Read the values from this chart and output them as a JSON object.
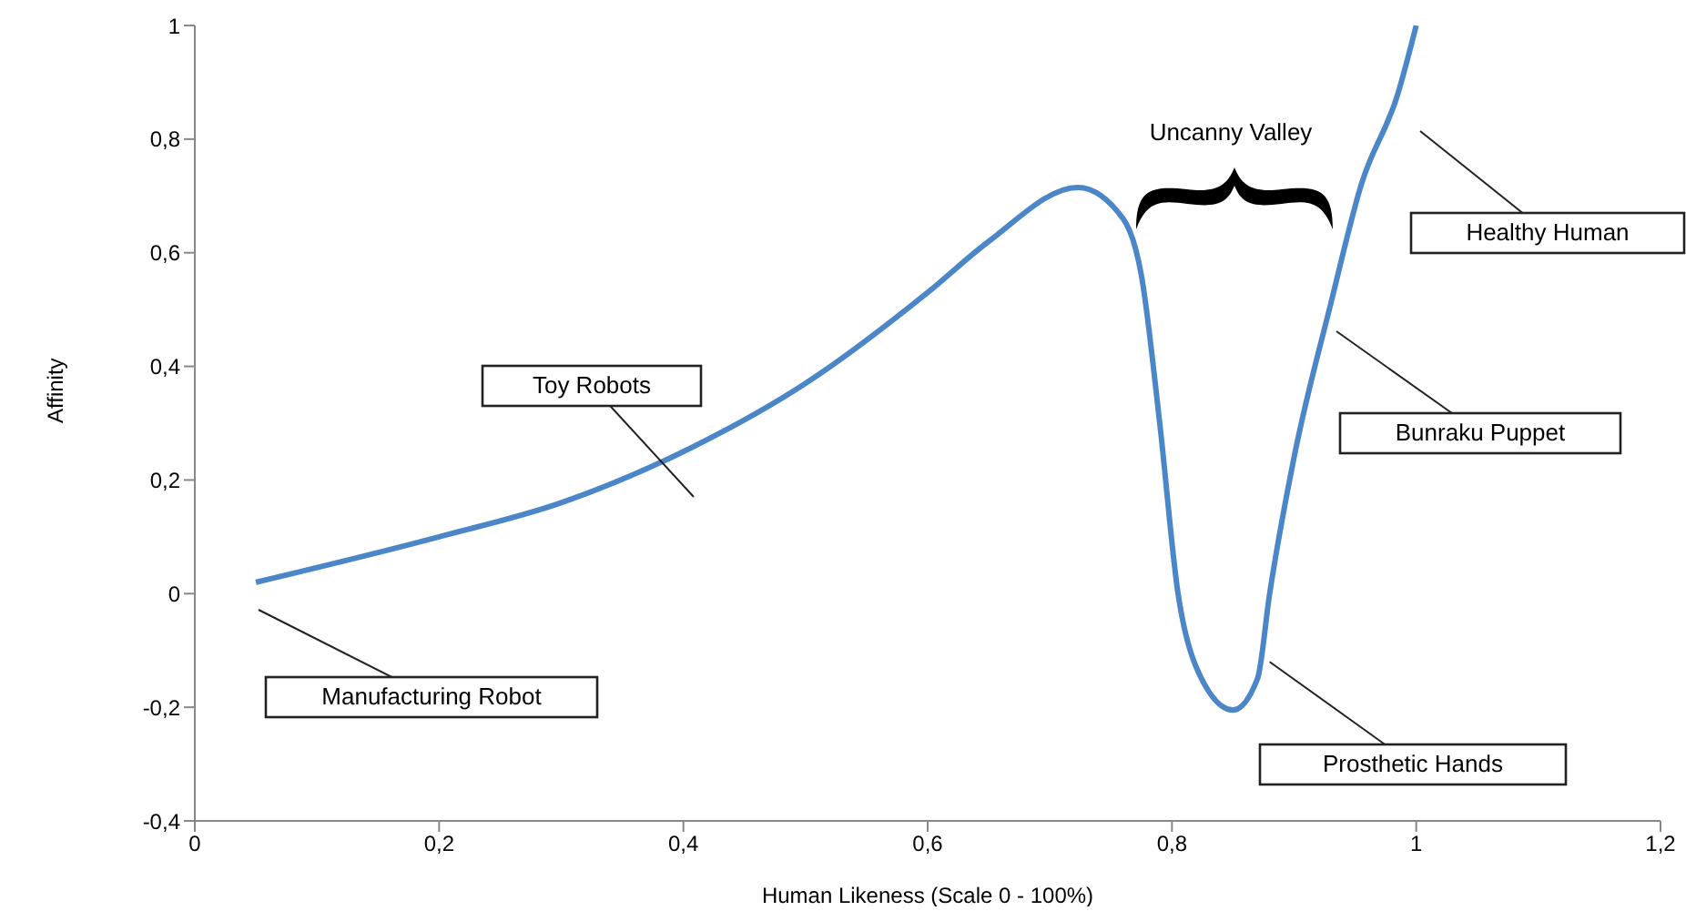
{
  "chart_data": {
    "type": "line",
    "xlabel": "Human Likeness (Scale 0 - 100%)",
    "ylabel": "Affinity",
    "x": [
      0.05,
      0.2,
      0.3,
      0.4,
      0.5,
      0.6,
      0.65,
      0.723,
      0.76,
      0.775,
      0.79,
      0.805,
      0.82,
      0.85,
      0.87,
      0.88,
      0.9,
      0.93,
      0.955,
      0.985,
      1.0
    ],
    "series": [
      {
        "color": "#4a86c8",
        "values": [
          0.02,
          0.1,
          0.16,
          0.25,
          0.37,
          0.53,
          0.62,
          0.715,
          0.66,
          0.56,
          0.3,
          0,
          -0.13,
          -0.205,
          -0.15,
          0,
          0.24,
          0.51,
          0.72,
          0.88,
          1.0
        ]
      }
    ],
    "xlim": [
      0,
      1.2
    ],
    "xticks": [
      0,
      {
        "value": 0.2,
        "label": "0,2"
      },
      {
        "value": 0.4,
        "label": "0,4"
      },
      {
        "value": 0.6,
        "label": "0,6"
      },
      {
        "value": 0.8,
        "label": "0,8"
      },
      1,
      {
        "value": 1.2,
        "label": "1,2"
      }
    ],
    "ylim": [
      -0.4,
      1
    ],
    "yticks": [
      {
        "value": -0.4,
        "label": "-0,4"
      },
      {
        "value": -0.2,
        "label": "-0,2"
      },
      0,
      {
        "value": 0.2,
        "label": "0,2"
      },
      {
        "value": 0.4,
        "label": "0,4"
      },
      {
        "value": 0.6,
        "label": "0,6"
      },
      {
        "value": 0.8,
        "label": "0,8"
      },
      1
    ],
    "grid": false,
    "legend": false,
    "marker": "none",
    "line_style": "solid",
    "annotations": [
      "Manufacturing Robot",
      "Toy Robots",
      "Bunraku Puppet",
      "Healthy Human",
      {
        "text": "Prosthetic Hands",
        "x": 0.88,
        "y": -0.12
      },
      "Uncanny Valley"
    ]
  }
}
